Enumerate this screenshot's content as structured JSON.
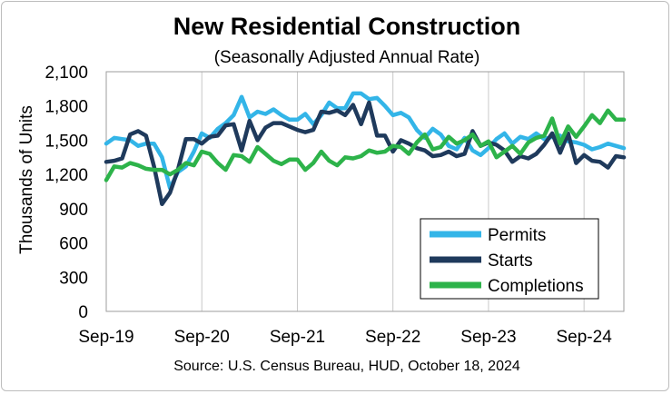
{
  "chart_data": {
    "type": "line",
    "title": "New Residential Construction",
    "subtitle": "(Seasonally Adjusted Annual Rate)",
    "ylabel": "Thousands of Units",
    "xlabel": "",
    "source": "Source:  U.S. Census Bureau, HUD, October 18, 2024",
    "ylim": [
      0,
      2100
    ],
    "yticks": [
      0,
      300,
      600,
      900,
      1200,
      1500,
      1800,
      2100
    ],
    "ytick_labels": [
      "0",
      "300",
      "600",
      "900",
      "1,200",
      "1,500",
      "1,800",
      "2,100"
    ],
    "xtick_labels": [
      "Sep-19",
      "Sep-20",
      "Sep-21",
      "Sep-22",
      "Sep-23",
      "Sep-24"
    ],
    "xtick_index": [
      0,
      12,
      24,
      36,
      48,
      60
    ],
    "grid": "vertical",
    "legend_position": "bottom-right",
    "series": [
      {
        "name": "Permits",
        "color": "#33B5E8",
        "values": [
          1470,
          1520,
          1510,
          1500,
          1450,
          1470,
          1470,
          1350,
          1080,
          1220,
          1270,
          1400,
          1560,
          1520,
          1600,
          1650,
          1720,
          1880,
          1700,
          1750,
          1730,
          1770,
          1720,
          1680,
          1680,
          1730,
          1640,
          1720,
          1830,
          1780,
          1780,
          1910,
          1910,
          1860,
          1870,
          1800,
          1720,
          1740,
          1700,
          1590,
          1520,
          1600,
          1550,
          1450,
          1420,
          1520,
          1410,
          1370,
          1430,
          1510,
          1560,
          1470,
          1530,
          1510,
          1560,
          1510,
          1530,
          1540,
          1490,
          1480,
          1460,
          1420,
          1440,
          1470,
          1450,
          1430
        ]
      },
      {
        "name": "Starts",
        "color": "#1F3A5C",
        "values": [
          1310,
          1320,
          1340,
          1550,
          1580,
          1540,
          1270,
          940,
          1040,
          1240,
          1510,
          1510,
          1470,
          1530,
          1540,
          1630,
          1640,
          1410,
          1670,
          1500,
          1610,
          1650,
          1650,
          1620,
          1590,
          1570,
          1590,
          1750,
          1740,
          1760,
          1720,
          1810,
          1640,
          1830,
          1540,
          1540,
          1400,
          1500,
          1470,
          1430,
          1410,
          1360,
          1370,
          1400,
          1360,
          1380,
          1580,
          1450,
          1480,
          1460,
          1410,
          1310,
          1360,
          1340,
          1380,
          1460,
          1560,
          1390,
          1560,
          1300,
          1370,
          1320,
          1310,
          1260,
          1360,
          1350
        ]
      },
      {
        "name": "Completions",
        "color": "#2DB34A",
        "values": [
          1150,
          1270,
          1260,
          1300,
          1280,
          1250,
          1240,
          1240,
          1200,
          1240,
          1300,
          1280,
          1400,
          1380,
          1300,
          1240,
          1370,
          1360,
          1310,
          1440,
          1380,
          1320,
          1290,
          1330,
          1330,
          1240,
          1300,
          1400,
          1320,
          1280,
          1350,
          1340,
          1360,
          1410,
          1390,
          1400,
          1450,
          1440,
          1380,
          1480,
          1550,
          1420,
          1440,
          1530,
          1470,
          1500,
          1550,
          1450,
          1490,
          1350,
          1400,
          1450,
          1380,
          1480,
          1520,
          1540,
          1690,
          1470,
          1620,
          1530,
          1620,
          1720,
          1650,
          1760,
          1680,
          1680
        ]
      }
    ]
  }
}
